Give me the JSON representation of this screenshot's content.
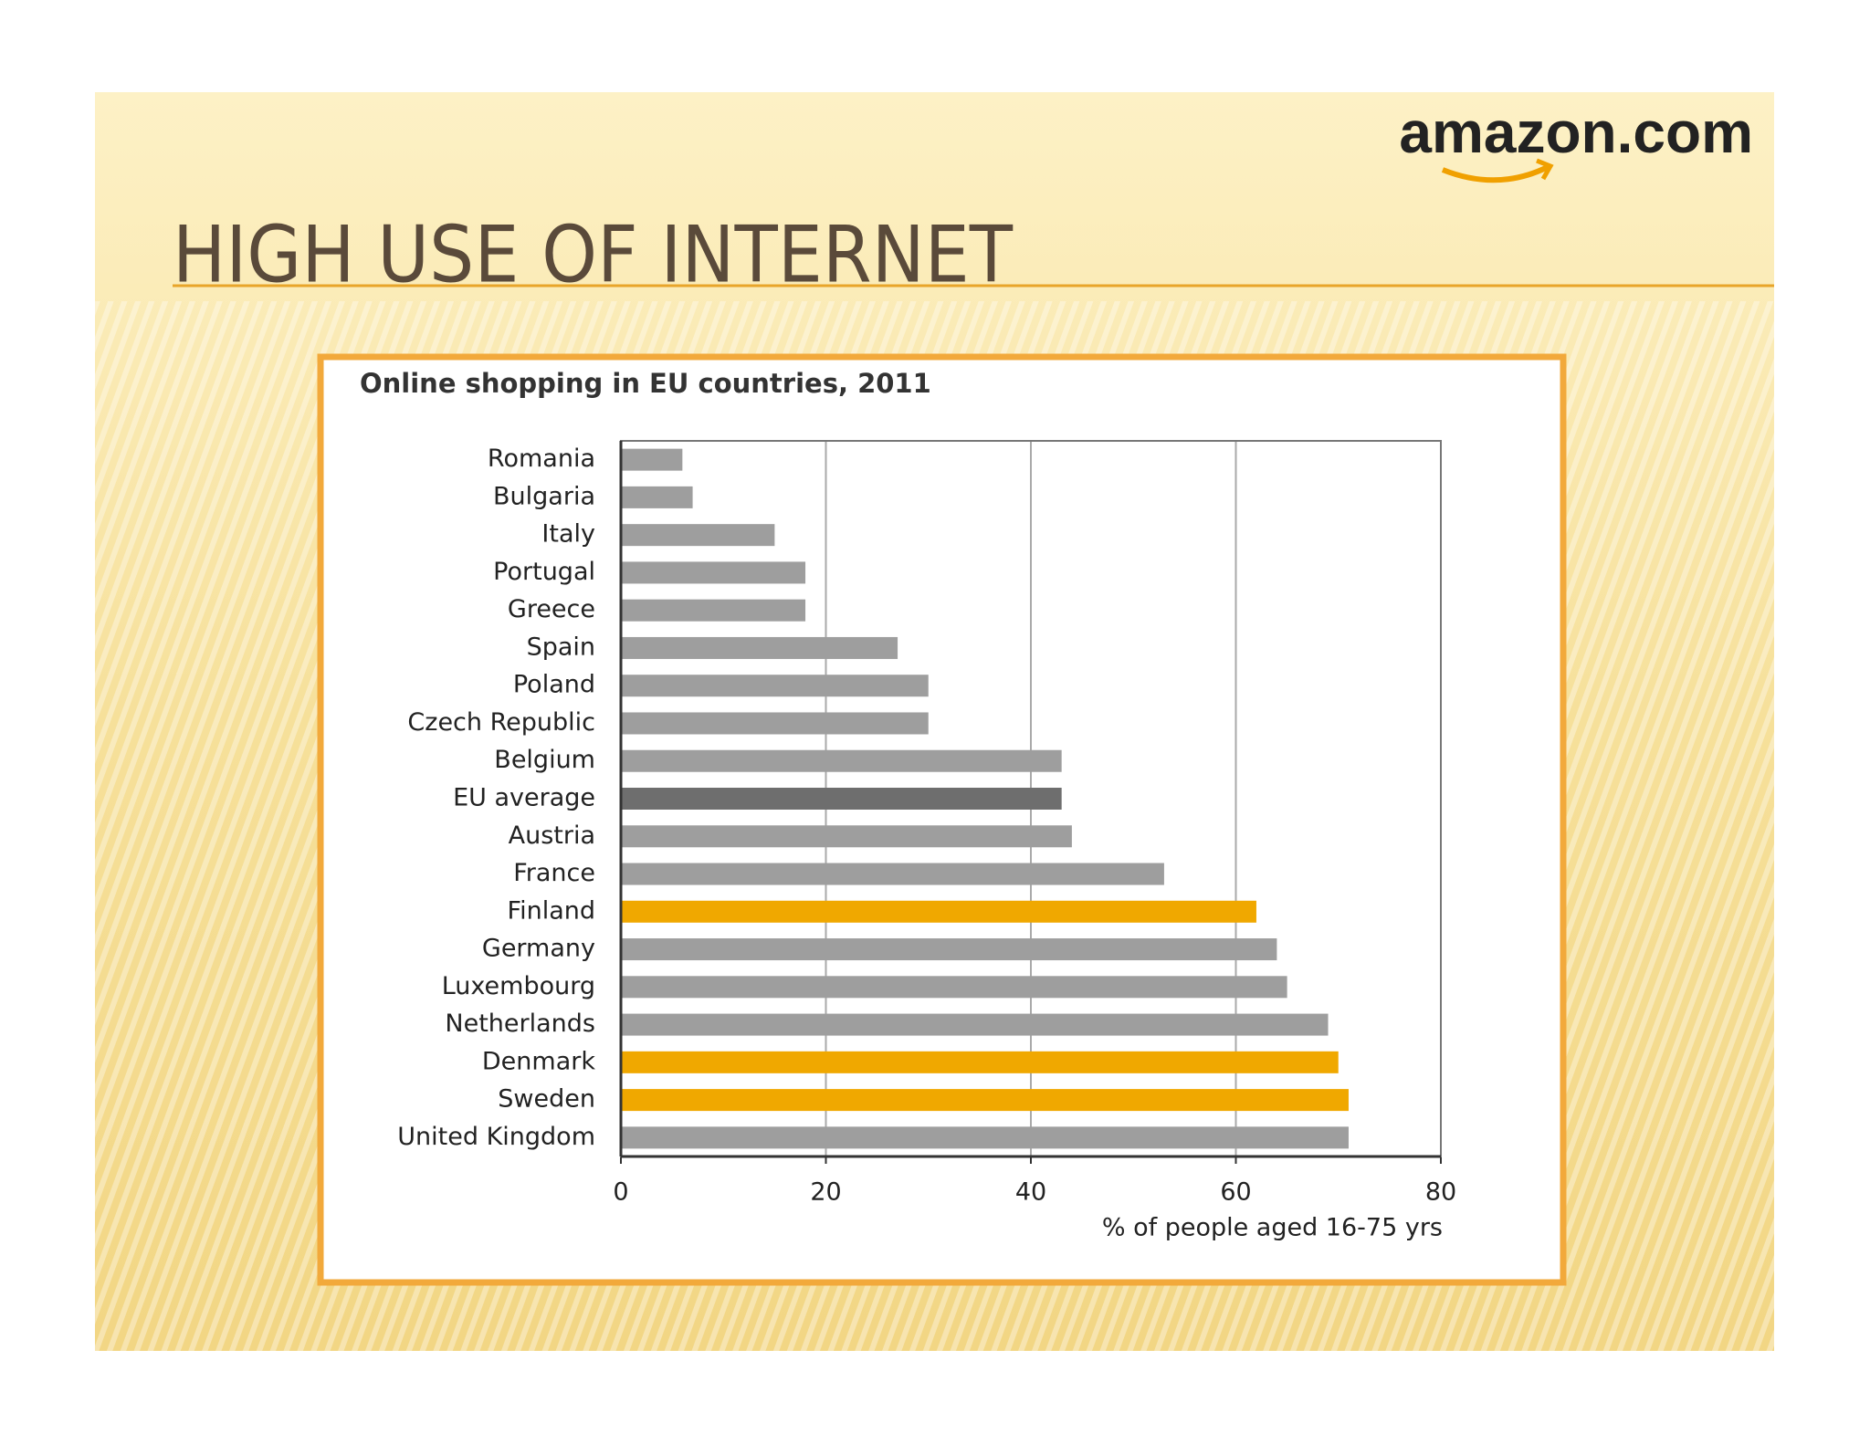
{
  "slide": {
    "title": "HIGH USE OF INTERNET",
    "logo": "amazon.com"
  },
  "chart_data": {
    "type": "bar",
    "orientation": "horizontal",
    "title": "Online shopping in EU countries, 2011",
    "x_label": "% of people aged 16-75 yrs",
    "categories": [
      "Romania",
      "Bulgaria",
      "Italy",
      "Portugal",
      "Greece",
      "Spain",
      "Poland",
      "Czech Republic",
      "Belgium",
      "EU average",
      "Austria",
      "France",
      "Finland",
      "Germany",
      "Luxembourg",
      "Netherlands",
      "Denmark",
      "Sweden",
      "United Kingdom"
    ],
    "values": [
      6,
      7,
      15,
      18,
      18,
      27,
      30,
      30,
      43,
      43,
      44,
      53,
      62,
      64,
      65,
      69,
      70,
      71,
      71
    ],
    "colors": [
      "#9e9e9e",
      "#9e9e9e",
      "#9e9e9e",
      "#9e9e9e",
      "#9e9e9e",
      "#9e9e9e",
      "#9e9e9e",
      "#9e9e9e",
      "#9e9e9e",
      "#6e6e6e",
      "#9e9e9e",
      "#9e9e9e",
      "#f0a800",
      "#9e9e9e",
      "#9e9e9e",
      "#9e9e9e",
      "#f0a800",
      "#f0a800",
      "#9e9e9e"
    ],
    "xlim": [
      0,
      80
    ],
    "xticks": [
      0,
      20,
      40,
      60,
      80
    ],
    "grid": true
  }
}
